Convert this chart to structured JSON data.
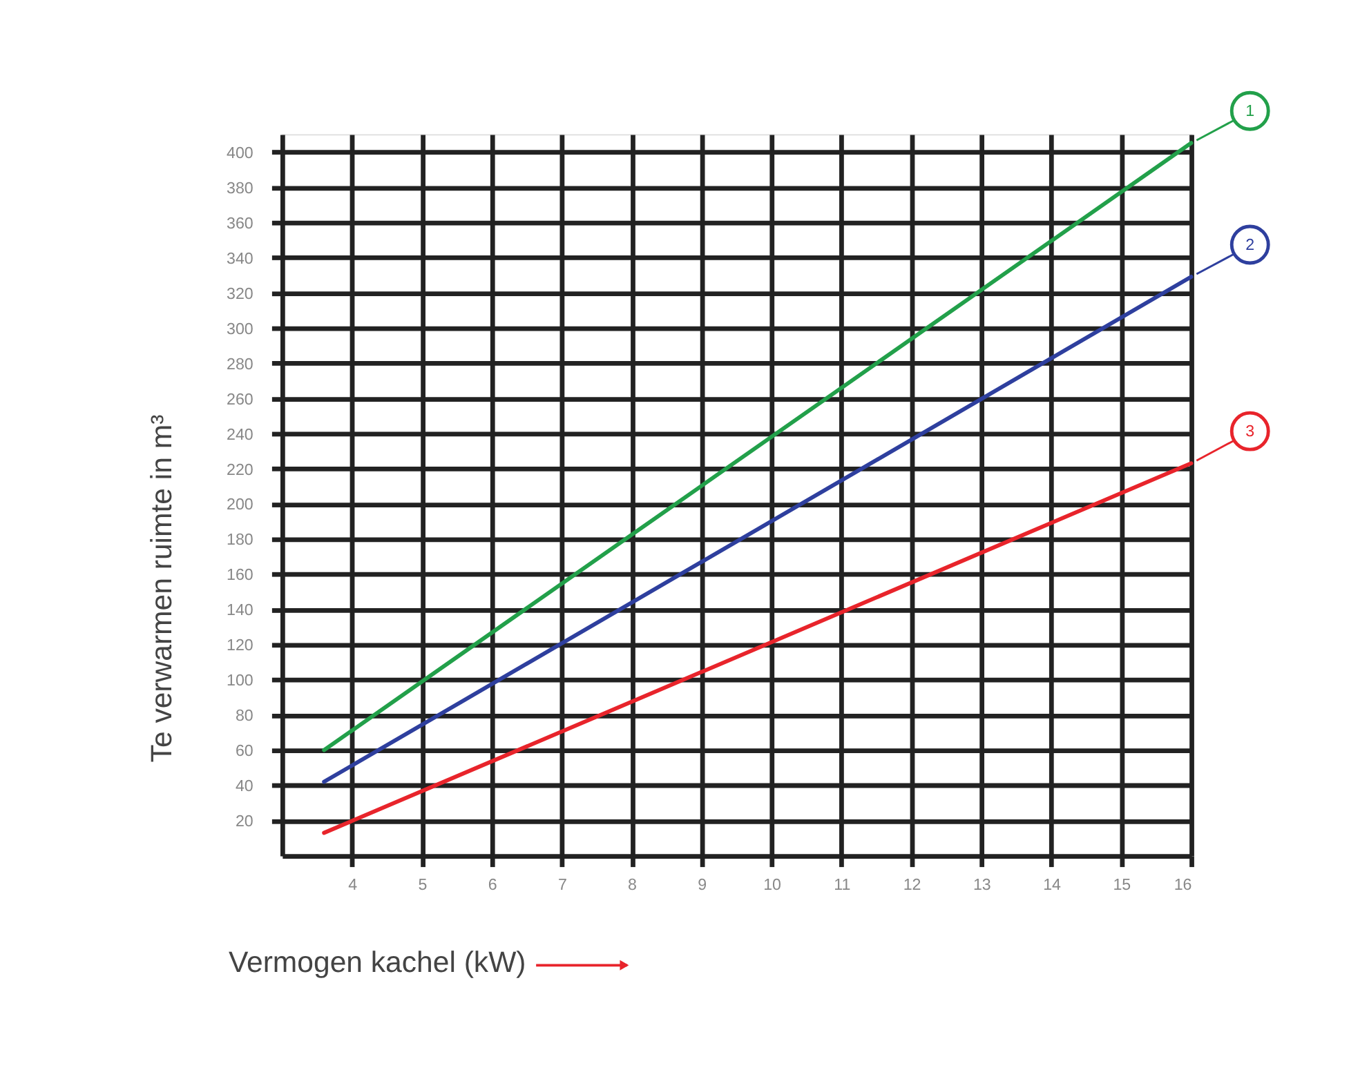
{
  "chart_data": {
    "type": "line",
    "xlabel": "Vermogen kachel (kW)",
    "ylabel": "Te verwarmen ruimte in m³",
    "x": [
      3.6,
      16
    ],
    "series": [
      {
        "name": "1",
        "color": "#22a04a",
        "values": [
          60,
          405
        ]
      },
      {
        "name": "2",
        "color": "#2e3f9e",
        "values": [
          42,
          329
        ]
      },
      {
        "name": "3",
        "color": "#e8242b",
        "values": [
          13,
          223
        ]
      }
    ],
    "xlim": [
      3,
      16
    ],
    "xticks": [
      4,
      5,
      6,
      7,
      8,
      9,
      10,
      11,
      12,
      13,
      14,
      15,
      16
    ],
    "ylim": [
      0,
      410
    ],
    "yticks": [
      20,
      40,
      60,
      80,
      100,
      120,
      140,
      160,
      180,
      200,
      220,
      240,
      260,
      280,
      300,
      320,
      340,
      360,
      380,
      400
    ],
    "grid": true,
    "legend": false,
    "marker": "none",
    "line_style": "solid"
  }
}
